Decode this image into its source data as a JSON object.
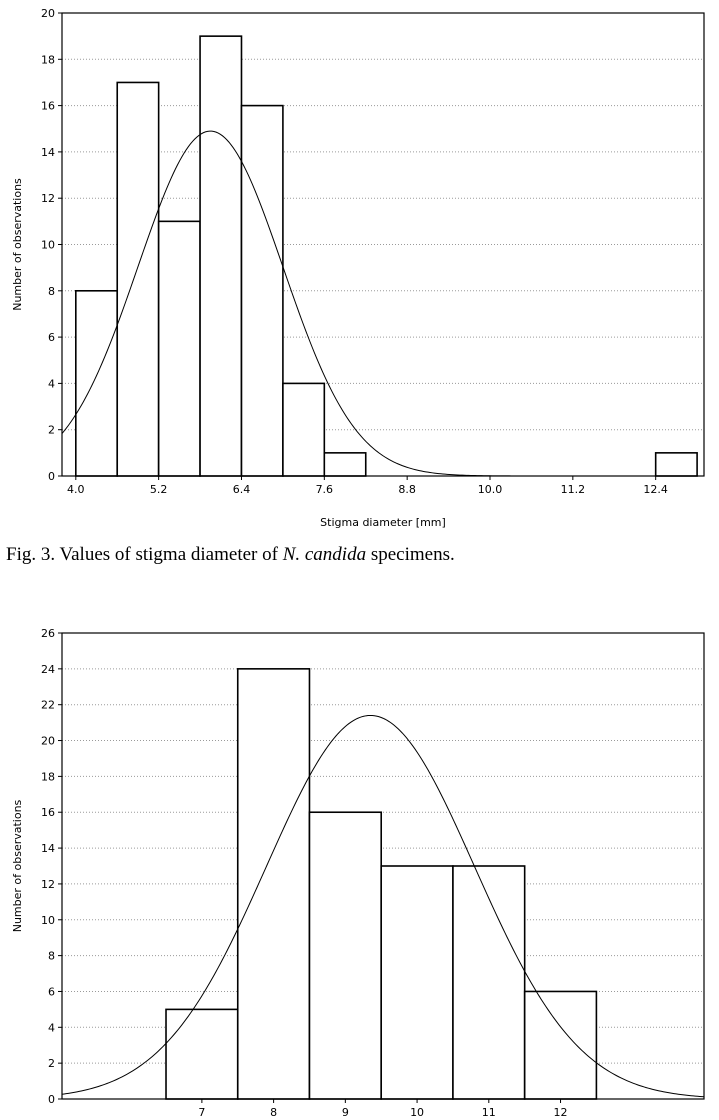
{
  "figure1": {
    "caption": {
      "prefix": "Fig. 3. Values of stigma diameter of ",
      "species": "N. candida",
      "suffix": " specimens."
    },
    "chart_data": {
      "type": "bar",
      "subtype": "histogram-with-normal-curve",
      "xlabel": "Stigma diameter [mm]",
      "ylabel": "Number of observations",
      "xlim": [
        3.8,
        13.1
      ],
      "ylim": [
        0,
        20
      ],
      "yticks": [
        0,
        2,
        4,
        6,
        8,
        10,
        12,
        14,
        16,
        18,
        20
      ],
      "xticks": [
        "4.0",
        "5.2",
        "6.4",
        "7.6",
        "8.8",
        "10.0",
        "11.2",
        "12.4"
      ],
      "xtick_values": [
        4.0,
        5.2,
        6.4,
        7.6,
        8.8,
        10.0,
        11.2,
        12.4
      ],
      "bins": [
        {
          "from": 4.0,
          "to": 4.6,
          "value": 8
        },
        {
          "from": 4.6,
          "to": 5.2,
          "value": 17
        },
        {
          "from": 5.2,
          "to": 5.8,
          "value": 11
        },
        {
          "from": 5.8,
          "to": 6.4,
          "value": 19
        },
        {
          "from": 6.4,
          "to": 7.0,
          "value": 16
        },
        {
          "from": 7.0,
          "to": 7.6,
          "value": 4
        },
        {
          "from": 7.6,
          "to": 8.2,
          "value": 1
        },
        {
          "from": 8.2,
          "to": 8.8,
          "value": 0
        },
        {
          "from": 8.8,
          "to": 9.4,
          "value": 0
        },
        {
          "from": 9.4,
          "to": 10.0,
          "value": 0
        },
        {
          "from": 10.0,
          "to": 10.6,
          "value": 0
        },
        {
          "from": 10.6,
          "to": 11.2,
          "value": 0
        },
        {
          "from": 11.2,
          "to": 11.8,
          "value": 0
        },
        {
          "from": 11.8,
          "to": 12.4,
          "value": 0
        },
        {
          "from": 12.4,
          "to": 13.0,
          "value": 1
        }
      ],
      "normal_curve": {
        "mean": 5.95,
        "sd": 1.05,
        "peak": 14.9
      },
      "grid": "horizontal-dotted"
    }
  },
  "figure2": {
    "chart_data": {
      "type": "bar",
      "subtype": "histogram-with-normal-curve",
      "xlabel": "",
      "ylabel": "Number of observations",
      "xlim": [
        5.05,
        14.0
      ],
      "ylim": [
        0,
        26
      ],
      "yticks": [
        0,
        2,
        4,
        6,
        8,
        10,
        12,
        14,
        16,
        18,
        20,
        22,
        24,
        26
      ],
      "xticks": [
        "7",
        "8",
        "9",
        "10",
        "11",
        "12"
      ],
      "xtick_values": [
        7,
        8,
        9,
        10,
        11,
        12
      ],
      "bins": [
        {
          "from": 6.5,
          "to": 7.5,
          "value": 5
        },
        {
          "from": 7.5,
          "to": 8.5,
          "value": 24
        },
        {
          "from": 8.5,
          "to": 9.5,
          "value": 16
        },
        {
          "from": 9.5,
          "to": 10.5,
          "value": 13
        },
        {
          "from": 10.5,
          "to": 11.5,
          "value": 13
        },
        {
          "from": 11.5,
          "to": 12.5,
          "value": 6
        }
      ],
      "normal_curve": {
        "mean": 9.35,
        "sd": 1.45,
        "peak": 21.4
      },
      "grid": "horizontal-dotted"
    }
  }
}
